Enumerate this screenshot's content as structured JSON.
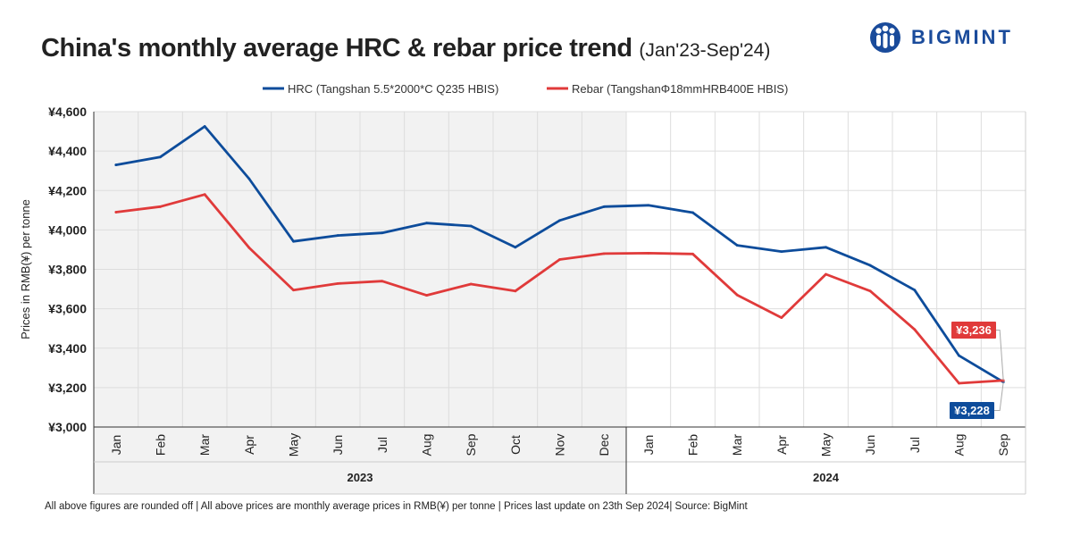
{
  "header": {
    "title": "China's monthly average HRC & rebar price trend",
    "period": "(Jan'23-Sep'24)",
    "brand": "BIGMINT"
  },
  "colors": {
    "hrc": "#0d4c9b",
    "rebar": "#e03a3a",
    "shade": "#f2f2f2",
    "grid": "#dddddd"
  },
  "chart_data": {
    "type": "line",
    "ylabel": "Prices in RMB(¥) per tonne",
    "ylim": [
      3000,
      4600
    ],
    "yticks": [
      3000,
      3200,
      3400,
      3600,
      3800,
      4000,
      4200,
      4400,
      4600
    ],
    "ytick_labels": [
      "¥3,000",
      "¥3,200",
      "¥3,400",
      "¥3,600",
      "¥3,800",
      "¥4,000",
      "¥4,200",
      "¥4,400",
      "¥4,600"
    ],
    "categories": [
      "Jan",
      "Feb",
      "Mar",
      "Apr",
      "May",
      "Jun",
      "Jul",
      "Aug",
      "Sep",
      "Oct",
      "Nov",
      "Dec",
      "Jan",
      "Feb",
      "Mar",
      "Apr",
      "May",
      "Jun",
      "Jul",
      "Aug",
      "Sep"
    ],
    "year_groups": [
      {
        "label": "2023",
        "start": 0,
        "end": 11,
        "shaded": true
      },
      {
        "label": "2024",
        "start": 12,
        "end": 20,
        "shaded": false
      }
    ],
    "series": [
      {
        "name": "HRC (Tangshan 5.5*2000*C Q235 HBIS)",
        "color": "#0d4c9b",
        "values": [
          4330,
          4370,
          4525,
          4260,
          3942,
          3972,
          3985,
          4035,
          4020,
          3912,
          4048,
          4118,
          4125,
          4088,
          3922,
          3890,
          3912,
          3820,
          3695,
          3362,
          3228
        ]
      },
      {
        "name": "Rebar (TangshanΦ18mmHRB400E HBIS)",
        "color": "#e03a3a",
        "values": [
          4090,
          4118,
          4180,
          3910,
          3695,
          3728,
          3740,
          3668,
          3725,
          3690,
          3850,
          3880,
          3882,
          3878,
          3670,
          3555,
          3775,
          3690,
          3495,
          3222,
          3236
        ]
      }
    ],
    "annotations": [
      {
        "series": "rebar",
        "label": "¥3,236",
        "value": 3236
      },
      {
        "series": "hrc",
        "label": "¥3,228",
        "value": 3228
      }
    ]
  },
  "footer": "All above figures are rounded off | All above prices are monthly average prices in RMB(¥) per tonne | Prices last update on 23th Sep 2024| Source: BigMint"
}
